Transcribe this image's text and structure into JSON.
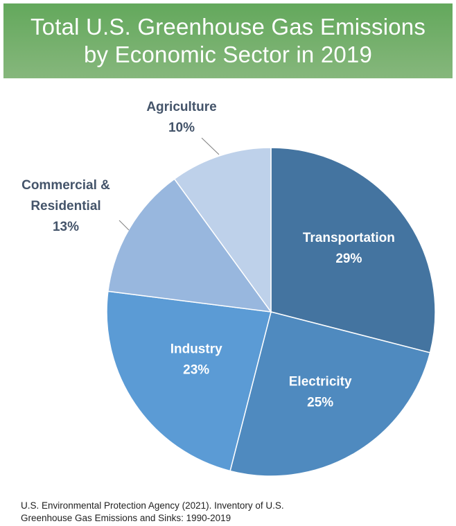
{
  "header": {
    "title_line1": "Total U.S. Greenhouse Gas Emissions",
    "title_line2": "by Economic Sector in 2019"
  },
  "source": {
    "line1": "U.S. Environmental Protection Agency (2021). Inventory of U.S.",
    "line2": "Greenhouse Gas Emissions and Sinks: 1990-2019"
  },
  "chart_data": {
    "type": "pie",
    "title": "Total U.S. Greenhouse Gas Emissions by Economic Sector in 2019",
    "unit": "%",
    "slices": [
      {
        "label": "Transportation",
        "value_label": "29%",
        "value": 29,
        "color": "#4474a0"
      },
      {
        "label": "Electricity",
        "value_label": "25%",
        "value": 25,
        "color": "#4f8abf"
      },
      {
        "label": "Industry",
        "value_label": "23%",
        "value": 23,
        "color": "#5b9bd5"
      },
      {
        "label": "Commercial & Residential",
        "label_lines": [
          "Commercial &",
          "Residential"
        ],
        "value_label": "13%",
        "value": 13,
        "color": "#98b7de"
      },
      {
        "label": "Agriculture",
        "value_label": "10%",
        "value": 10,
        "color": "#bed1ea"
      }
    ],
    "legend": "none",
    "label_text_color_inside": "#ffffff",
    "label_text_color_outside": "#44546a"
  }
}
